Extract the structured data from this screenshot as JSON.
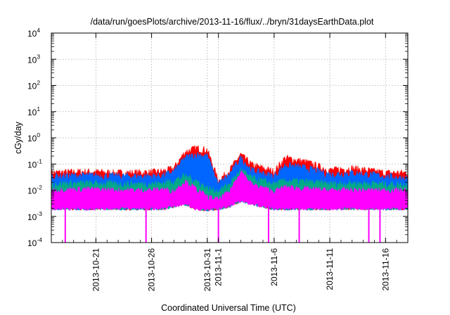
{
  "chart_data": {
    "type": "line",
    "title": "/data/run/goesPlots/archive/2013-11-16/flux/../bryn/31daysEarthData.plot",
    "xlabel": "Coordinated Universal Time (UTC)",
    "ylabel": "cGy/day",
    "yscale": "log",
    "ylim": [
      0.0001,
      10000
    ],
    "xlim": [
      "2013-10-17",
      "2013-11-18"
    ],
    "y_ticks": [
      {
        "base": "10",
        "exp": "-4",
        "value": 0.0001
      },
      {
        "base": "10",
        "exp": "-3",
        "value": 0.001
      },
      {
        "base": "10",
        "exp": "-2",
        "value": 0.01
      },
      {
        "base": "10",
        "exp": "-1",
        "value": 0.1
      },
      {
        "base": "10",
        "exp": "0",
        "value": 1
      },
      {
        "base": "10",
        "exp": "1",
        "value": 10
      },
      {
        "base": "10",
        "exp": "2",
        "value": 100
      },
      {
        "base": "10",
        "exp": "3",
        "value": 1000
      },
      {
        "base": "10",
        "exp": "4",
        "value": 10000
      }
    ],
    "x_ticks": [
      {
        "label": "2013-10-21",
        "day": 21
      },
      {
        "label": "2013-10-26",
        "day": 26
      },
      {
        "label": "2013-10-31",
        "day": 31
      },
      {
        "label": "2013-11-1",
        "day": 32
      },
      {
        "label": "2013-11-6",
        "day": 37
      },
      {
        "label": "2013-11-11",
        "day": 42
      },
      {
        "label": "2013-11-16",
        "day": 47
      }
    ],
    "grid": true,
    "series": [
      {
        "color": "#ff0000",
        "level": "upper",
        "x": [
          "2013-10-17",
          "2013-10-20",
          "2013-10-23",
          "2013-10-26",
          "2013-10-27",
          "2013-10-28",
          "2013-10-29",
          "2013-10-30",
          "2013-10-31",
          "2013-11-01",
          "2013-11-02",
          "2013-11-03",
          "2013-11-04",
          "2013-11-06",
          "2013-11-07",
          "2013-11-09",
          "2013-11-11",
          "2013-11-13",
          "2013-11-16",
          "2013-11-18"
        ],
        "values": [
          0.04,
          0.045,
          0.04,
          0.042,
          0.045,
          0.06,
          0.25,
          0.35,
          0.3,
          0.02,
          0.05,
          0.2,
          0.08,
          0.045,
          0.15,
          0.1,
          0.05,
          0.06,
          0.04,
          0.04
        ]
      },
      {
        "color": "#0066ff",
        "level": "upper",
        "x": [
          "2013-10-17",
          "2013-10-20",
          "2013-10-23",
          "2013-10-26",
          "2013-10-27",
          "2013-10-28",
          "2013-10-29",
          "2013-10-30",
          "2013-10-31",
          "2013-11-01",
          "2013-11-02",
          "2013-11-03",
          "2013-11-04",
          "2013-11-06",
          "2013-11-07",
          "2013-11-09",
          "2013-11-11",
          "2013-11-13",
          "2013-11-16",
          "2013-11-18"
        ],
        "values": [
          0.03,
          0.032,
          0.03,
          0.03,
          0.032,
          0.045,
          0.15,
          0.2,
          0.18,
          0.015,
          0.035,
          0.15,
          0.05,
          0.03,
          0.08,
          0.06,
          0.035,
          0.04,
          0.03,
          0.025
        ]
      },
      {
        "color": "#00aa88",
        "level": "upper",
        "x": [
          "2013-10-17",
          "2013-10-20",
          "2013-10-23",
          "2013-10-26",
          "2013-10-27",
          "2013-10-28",
          "2013-10-29",
          "2013-10-30",
          "2013-10-31",
          "2013-11-01",
          "2013-11-02",
          "2013-11-03",
          "2013-11-04",
          "2013-11-06",
          "2013-11-07",
          "2013-11-09",
          "2013-11-11",
          "2013-11-13",
          "2013-11-16",
          "2013-11-18"
        ],
        "values": [
          0.015,
          0.016,
          0.015,
          0.015,
          0.016,
          0.02,
          0.03,
          0.02,
          0.01,
          0.008,
          0.015,
          0.05,
          0.025,
          0.015,
          0.02,
          0.018,
          0.015,
          0.016,
          0.015,
          0.014
        ]
      },
      {
        "color": "#ff00ff",
        "level": "upper",
        "x": [
          "2013-10-17",
          "2013-10-20",
          "2013-10-23",
          "2013-10-26",
          "2013-10-27",
          "2013-10-28",
          "2013-10-29",
          "2013-10-30",
          "2013-10-31",
          "2013-11-01",
          "2013-11-02",
          "2013-11-03",
          "2013-11-04",
          "2013-11-06",
          "2013-11-07",
          "2013-11-09",
          "2013-11-11",
          "2013-11-13",
          "2013-11-16",
          "2013-11-18"
        ],
        "values": [
          0.009,
          0.01,
          0.009,
          0.009,
          0.01,
          0.008,
          0.02,
          0.01,
          0.005,
          0.004,
          0.008,
          0.05,
          0.015,
          0.008,
          0.012,
          0.01,
          0.009,
          0.009,
          0.009,
          0.009
        ]
      },
      {
        "color": "#ff00ff",
        "level": "lower",
        "x": [
          "2013-10-17",
          "2013-10-20",
          "2013-10-23",
          "2013-10-26",
          "2013-10-27",
          "2013-10-28",
          "2013-10-29",
          "2013-10-30",
          "2013-10-31",
          "2013-11-01",
          "2013-11-02",
          "2013-11-03",
          "2013-11-04",
          "2013-11-06",
          "2013-11-07",
          "2013-11-09",
          "2013-11-11",
          "2013-11-13",
          "2013-11-16",
          "2013-11-18"
        ],
        "values": [
          0.002,
          0.002,
          0.002,
          0.002,
          0.002,
          0.0025,
          0.003,
          0.002,
          0.0018,
          0.002,
          0.0025,
          0.004,
          0.003,
          0.002,
          0.002,
          0.002,
          0.002,
          0.002,
          0.002,
          0.002
        ]
      }
    ],
    "drops": {
      "color": "#ff00ff",
      "x": [
        "2013-10-18 06:00",
        "2013-10-25 12:00",
        "2013-11-01 00:00",
        "2013-11-05 12:00",
        "2013-11-08 06:00",
        "2013-11-14 12:00",
        "2013-11-15 12:00"
      ],
      "values": [
        0.0001,
        0.0001,
        0.0001,
        0.0001,
        0.0001,
        0.0001,
        0.0001
      ]
    }
  }
}
